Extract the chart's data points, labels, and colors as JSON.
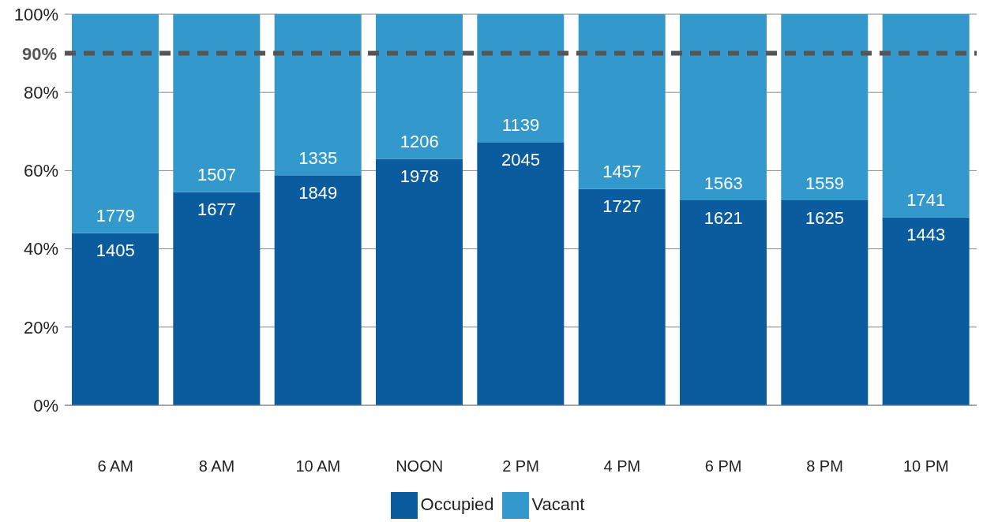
{
  "chart_data": {
    "type": "bar",
    "stacked": true,
    "categories": [
      "6 AM",
      "8 AM",
      "10 AM",
      "NOON",
      "2 PM",
      "4 PM",
      "6 PM",
      "8 PM",
      "10 PM"
    ],
    "series": [
      {
        "name": "Occupied",
        "color": "#0b5c9e",
        "values": [
          44.0,
          54.5,
          58.8,
          63.0,
          67.3,
          55.3,
          52.4,
          52.4,
          48.1
        ]
      },
      {
        "name": "Vacant",
        "color": "#3399cc",
        "values": [
          56.0,
          45.5,
          41.2,
          37.0,
          32.7,
          44.7,
          47.6,
          47.6,
          51.9
        ]
      }
    ],
    "ylim": [
      0,
      100
    ],
    "yticks": [
      {
        "value": 0,
        "label": "0%"
      },
      {
        "value": 20,
        "label": "20%"
      },
      {
        "value": 40,
        "label": "40%"
      },
      {
        "value": 60,
        "label": "60%"
      },
      {
        "value": 80,
        "label": "80%"
      },
      {
        "value": 100,
        "label": "100%"
      }
    ],
    "ref_lines": [
      {
        "axis": "y",
        "value": 90,
        "label": "90%",
        "color": "#555555",
        "line_style": "dashed"
      }
    ],
    "annotations": [
      {
        "text": "1405",
        "x": "6 AM",
        "y": 44.0
      },
      {
        "text": "1779",
        "x": "6 AM",
        "y": 44.0
      },
      {
        "text": "1677",
        "x": "8 AM",
        "y": 54.5
      },
      {
        "text": "1507",
        "x": "8 AM",
        "y": 54.5
      },
      {
        "text": "1849",
        "x": "10 AM",
        "y": 58.8
      },
      {
        "text": "1335",
        "x": "10 AM",
        "y": 58.8
      },
      {
        "text": "1978",
        "x": "NOON",
        "y": 63.0
      },
      {
        "text": "1206",
        "x": "NOON",
        "y": 63.0
      },
      {
        "text": "2045",
        "x": "2 PM",
        "y": 67.3
      },
      {
        "text": "1139",
        "x": "2 PM",
        "y": 67.3
      },
      {
        "text": "1727",
        "x": "4 PM",
        "y": 55.3
      },
      {
        "text": "1457",
        "x": "4 PM",
        "y": 55.3
      },
      {
        "text": "1621",
        "x": "6 PM",
        "y": 52.4
      },
      {
        "text": "1563",
        "x": "6 PM",
        "y": 52.4
      },
      {
        "text": "1625",
        "x": "8 PM",
        "y": 52.4
      },
      {
        "text": "1559",
        "x": "8 PM",
        "y": 52.4
      },
      {
        "text": "1443",
        "x": "10 PM",
        "y": 48.1
      },
      {
        "text": "1741",
        "x": "10 PM",
        "y": 48.1
      }
    ],
    "grid": "y",
    "legend": "bottom"
  }
}
